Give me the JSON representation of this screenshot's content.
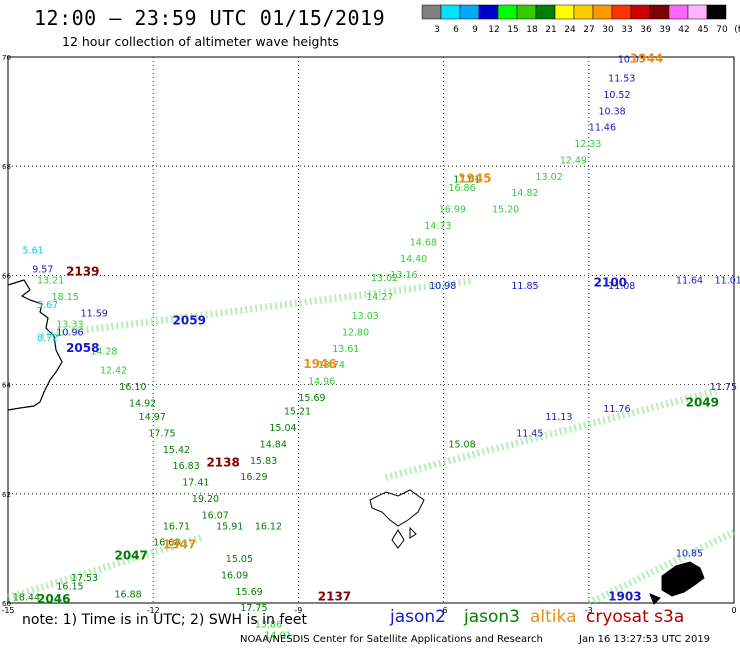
{
  "title": "12:00 – 23:59 UTC 01/15/2019",
  "subtitle": "12 hour collection of altimeter wave heights",
  "colorbar": {
    "colors": [
      "#808080",
      "#00e5ff",
      "#00a8ff",
      "#0000cc",
      "#00ff00",
      "#33cc00",
      "#008000",
      "#ffff00",
      "#ffcc00",
      "#ff9900",
      "#ff3300",
      "#cc0000",
      "#800000",
      "#ff66ff",
      "#ffb3ff",
      "#000000"
    ],
    "labels": [
      "3",
      "6",
      "9",
      "12",
      "15",
      "18",
      "21",
      "24",
      "27",
      "30",
      "33",
      "36",
      "39",
      "42",
      "45",
      "70",
      "(ft)"
    ]
  },
  "axes": {
    "x_ticks": [
      "-15",
      "-12",
      "-9",
      "-6",
      "-3",
      "0"
    ],
    "y_ticks": [
      "70",
      "68",
      "66",
      "64",
      "62",
      "60"
    ]
  },
  "passes": [
    {
      "label": "1944",
      "color": "#e8901a",
      "lon": -2.15,
      "lat": 69.9
    },
    {
      "label": "1945",
      "color": "#e8901a",
      "lon": -5.7,
      "lat": 67.7
    },
    {
      "label": "1946",
      "color": "#e8901a",
      "lon": -8.9,
      "lat": 64.3
    },
    {
      "label": "1947",
      "color": "#e8901a",
      "lon": -11.8,
      "lat": 61.0
    },
    {
      "label": "2100",
      "color": "#1818c8",
      "lon": -2.9,
      "lat": 65.8
    },
    {
      "label": "2059",
      "color": "#1818c8",
      "lon": -11.6,
      "lat": 65.1
    },
    {
      "label": "2058",
      "color": "#1818c8",
      "lon": -13.8,
      "lat": 64.6
    },
    {
      "label": "1903",
      "color": "#1818c8",
      "lon": -2.6,
      "lat": 60.05
    },
    {
      "label": "2049",
      "color": "#008000",
      "lon": -1.0,
      "lat": 63.6
    },
    {
      "label": "2047",
      "color": "#008000",
      "lon": -12.8,
      "lat": 60.8
    },
    {
      "label": "2046",
      "color": "#008000",
      "lon": -14.4,
      "lat": 60.0
    },
    {
      "label": "2139",
      "color": "#800000",
      "lon": -13.8,
      "lat": 66.0
    },
    {
      "label": "2138",
      "color": "#800000",
      "lon": -10.9,
      "lat": 62.5
    },
    {
      "label": "2137",
      "color": "#800000",
      "lon": -8.6,
      "lat": 60.05
    }
  ],
  "swh_readings": [
    {
      "v": "10.03",
      "color": "#1818c8",
      "lon": -2.4,
      "lat": 69.9
    },
    {
      "v": "11.53",
      "color": "#1818c8",
      "lon": -2.6,
      "lat": 69.55
    },
    {
      "v": "10.52",
      "color": "#1818c8",
      "lon": -2.7,
      "lat": 69.25
    },
    {
      "v": "10.38",
      "color": "#1818c8",
      "lon": -2.8,
      "lat": 68.95
    },
    {
      "v": "11.46",
      "color": "#1818c8",
      "lon": -3.0,
      "lat": 68.65
    },
    {
      "v": "12.33",
      "color": "#33cc33",
      "lon": -3.3,
      "lat": 68.35
    },
    {
      "v": "12.49",
      "color": "#33cc33",
      "lon": -3.6,
      "lat": 68.05
    },
    {
      "v": "13.02",
      "color": "#33cc33",
      "lon": -4.1,
      "lat": 67.75
    },
    {
      "v": "14.82",
      "color": "#33cc33",
      "lon": -4.6,
      "lat": 67.45
    },
    {
      "v": "15.20",
      "color": "#33cc33",
      "lon": -5.0,
      "lat": 67.15
    },
    {
      "v": "17.01",
      "color": "#008000",
      "lon": -5.8,
      "lat": 67.7
    },
    {
      "v": "16.86",
      "color": "#33cc33",
      "lon": -5.9,
      "lat": 67.55
    },
    {
      "v": "16.99",
      "color": "#33cc33",
      "lon": -6.1,
      "lat": 67.15
    },
    {
      "v": "14.73",
      "color": "#33cc33",
      "lon": -6.4,
      "lat": 66.85
    },
    {
      "v": "14.68",
      "color": "#33cc33",
      "lon": -6.7,
      "lat": 66.55
    },
    {
      "v": "14.40",
      "color": "#33cc33",
      "lon": -6.9,
      "lat": 66.25
    },
    {
      "v": "13.16",
      "color": "#33cc33",
      "lon": -7.1,
      "lat": 65.95
    },
    {
      "v": "13.02",
      "color": "#33cc33",
      "lon": -7.5,
      "lat": 65.9
    },
    {
      "v": "14.27",
      "color": "#33cc33",
      "lon": -7.6,
      "lat": 65.55
    },
    {
      "v": "13.03",
      "color": "#33cc33",
      "lon": -7.9,
      "lat": 65.2
    },
    {
      "v": "12.80",
      "color": "#33cc33",
      "lon": -8.1,
      "lat": 64.9
    },
    {
      "v": "13.61",
      "color": "#33cc33",
      "lon": -8.3,
      "lat": 64.6
    },
    {
      "v": "13.74",
      "color": "#33cc33",
      "lon": -8.6,
      "lat": 64.3
    },
    {
      "v": "14.96",
      "color": "#33cc33",
      "lon": -8.8,
      "lat": 64.0
    },
    {
      "v": "15.69",
      "color": "#008000",
      "lon": -9.0,
      "lat": 63.7
    },
    {
      "v": "15.21",
      "color": "#008000",
      "lon": -9.3,
      "lat": 63.45
    },
    {
      "v": "15.04",
      "color": "#008000",
      "lon": -9.6,
      "lat": 63.15
    },
    {
      "v": "14.84",
      "color": "#008000",
      "lon": -9.8,
      "lat": 62.85
    },
    {
      "v": "15.83",
      "color": "#008000",
      "lon": -10.0,
      "lat": 62.55
    },
    {
      "v": "16.29",
      "color": "#008000",
      "lon": -10.2,
      "lat": 62.25
    },
    {
      "v": "10.98",
      "color": "#1818c8",
      "lon": -6.3,
      "lat": 65.75
    },
    {
      "v": "11.85",
      "color": "#1818c8",
      "lon": -4.6,
      "lat": 65.75
    },
    {
      "v": "11.08",
      "color": "#1818c8",
      "lon": -2.6,
      "lat": 65.75
    },
    {
      "v": "11.64",
      "color": "#1818c8",
      "lon": -1.2,
      "lat": 65.85
    },
    {
      "v": "11.01",
      "color": "#1818c8",
      "lon": -0.4,
      "lat": 65.85
    },
    {
      "v": "10.96",
      "color": "#1818c8",
      "lon": -14.0,
      "lat": 64.9
    },
    {
      "v": "11.59",
      "color": "#1818c8",
      "lon": -13.5,
      "lat": 65.25
    },
    {
      "v": "9.57",
      "color": "#1818c8",
      "lon": -14.5,
      "lat": 66.05
    },
    {
      "v": "5.61",
      "color": "#00c8ff",
      "lon": -14.7,
      "lat": 66.4
    },
    {
      "v": "8.72",
      "color": "#00c8ff",
      "lon": -14.4,
      "lat": 64.8
    },
    {
      "v": "5.67",
      "color": "#00c8ff",
      "lon": -14.4,
      "lat": 65.4
    },
    {
      "v": "13.21",
      "color": "#33cc33",
      "lon": -14.4,
      "lat": 65.85
    },
    {
      "v": "18.15",
      "color": "#33cc33",
      "lon": -14.1,
      "lat": 65.55
    },
    {
      "v": "13.33",
      "color": "#33cc33",
      "lon": -14.0,
      "lat": 65.05
    },
    {
      "v": "14.28",
      "color": "#33cc33",
      "lon": -13.3,
      "lat": 64.55
    },
    {
      "v": "12.42",
      "color": "#33cc33",
      "lon": -13.1,
      "lat": 64.2
    },
    {
      "v": "16.10",
      "color": "#008000",
      "lon": -12.7,
      "lat": 63.9
    },
    {
      "v": "14.92",
      "color": "#008000",
      "lon": -12.5,
      "lat": 63.6
    },
    {
      "v": "14.97",
      "color": "#008000",
      "lon": -12.3,
      "lat": 63.35
    },
    {
      "v": "17.75",
      "color": "#008000",
      "lon": -12.1,
      "lat": 63.05
    },
    {
      "v": "15.42",
      "color": "#008000",
      "lon": -11.8,
      "lat": 62.75
    },
    {
      "v": "16.83",
      "color": "#008000",
      "lon": -11.6,
      "lat": 62.45
    },
    {
      "v": "17.41",
      "color": "#008000",
      "lon": -11.4,
      "lat": 62.15
    },
    {
      "v": "19.20",
      "color": "#008000",
      "lon": -11.2,
      "lat": 61.85
    },
    {
      "v": "16.07",
      "color": "#008000",
      "lon": -11.0,
      "lat": 61.55
    },
    {
      "v": "16.71",
      "color": "#008000",
      "lon": -11.8,
      "lat": 61.35
    },
    {
      "v": "16.68",
      "color": "#008000",
      "lon": -12.0,
      "lat": 61.05
    },
    {
      "v": "15.91",
      "color": "#008000",
      "lon": -10.7,
      "lat": 61.35
    },
    {
      "v": "16.12",
      "color": "#008000",
      "lon": -9.9,
      "lat": 61.35
    },
    {
      "v": "15.05",
      "color": "#008000",
      "lon": -10.5,
      "lat": 60.75
    },
    {
      "v": "16.09",
      "color": "#008000",
      "lon": -10.6,
      "lat": 60.45
    },
    {
      "v": "15.69",
      "color": "#008000",
      "lon": -10.3,
      "lat": 60.15
    },
    {
      "v": "17.75",
      "color": "#008000",
      "lon": -10.2,
      "lat": 59.85
    },
    {
      "v": "13.86",
      "color": "#33cc33",
      "lon": -9.9,
      "lat": 59.55
    },
    {
      "v": "14.01",
      "color": "#33cc33",
      "lon": -9.7,
      "lat": 59.35
    },
    {
      "v": "16.88",
      "color": "#008000",
      "lon": -12.8,
      "lat": 60.1
    },
    {
      "v": "17.53",
      "color": "#008000",
      "lon": -13.7,
      "lat": 60.4
    },
    {
      "v": "16.15",
      "color": "#008000",
      "lon": -14.0,
      "lat": 60.25
    },
    {
      "v": "18.44",
      "color": "#008000",
      "lon": -14.9,
      "lat": 60.05
    },
    {
      "v": "15.08",
      "color": "#008000",
      "lon": -5.9,
      "lat": 62.85
    },
    {
      "v": "11.45",
      "color": "#1818c8",
      "lon": -4.5,
      "lat": 63.05
    },
    {
      "v": "11.13",
      "color": "#1818c8",
      "lon": -3.9,
      "lat": 63.35
    },
    {
      "v": "11.76",
      "color": "#1818c8",
      "lon": -2.7,
      "lat": 63.5
    },
    {
      "v": "11.75",
      "color": "#1818c8",
      "lon": -0.5,
      "lat": 63.9
    },
    {
      "v": "10.85",
      "color": "#1818c8",
      "lon": -1.2,
      "lat": 60.85
    }
  ],
  "track_green_dense": [
    {
      "from": [
        -14.3,
        64.9
      ],
      "to": [
        -5.4,
        65.9
      ]
    },
    {
      "from": [
        -7.2,
        62.3
      ],
      "to": [
        -0.3,
        63.9
      ]
    },
    {
      "from": [
        -15.0,
        60.1
      ],
      "to": [
        -11.0,
        61.2
      ]
    },
    {
      "from": [
        -3.0,
        60.0
      ],
      "to": [
        0.0,
        61.3
      ]
    }
  ]
}
